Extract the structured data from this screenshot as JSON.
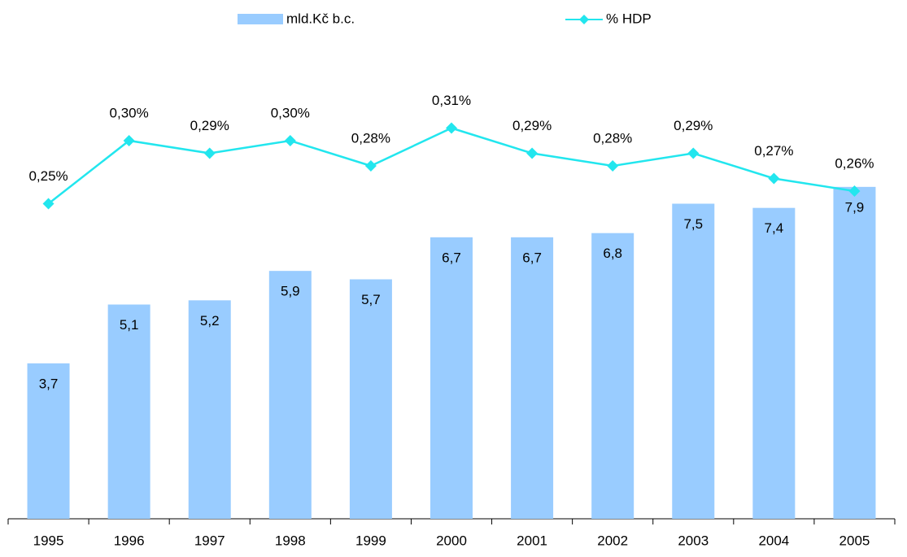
{
  "chart_data": {
    "type": "bar_line",
    "categories": [
      "1995",
      "1996",
      "1997",
      "1998",
      "1999",
      "2000",
      "2001",
      "2002",
      "2003",
      "2004",
      "2005"
    ],
    "series": [
      {
        "name": "mld.Kč b.c.",
        "type": "bar",
        "color": "#99ccff",
        "values": [
          3.7,
          5.1,
          5.2,
          5.9,
          5.7,
          6.7,
          6.7,
          6.8,
          7.5,
          7.4,
          7.9
        ],
        "value_labels": [
          "3,7",
          "5,1",
          "5,2",
          "5,9",
          "5,7",
          "6,7",
          "6,7",
          "6,8",
          "7,5",
          "7,4",
          "7,9"
        ]
      },
      {
        "name": "% HDP",
        "type": "line",
        "axis": "y2",
        "color": "#22e6ee",
        "values": [
          0.25,
          0.3,
          0.29,
          0.3,
          0.28,
          0.31,
          0.29,
          0.28,
          0.29,
          0.27,
          0.26
        ],
        "value_labels": [
          "0,25%",
          "0,30%",
          "0,29%",
          "0,30%",
          "0,28%",
          "0,31%",
          "0,29%",
          "0,28%",
          "0,29%",
          "0,27%",
          "0,26%"
        ]
      }
    ],
    "ylim": [
      0,
      12
    ],
    "y2lim": [
      0,
      0.4
    ],
    "legend": "top"
  }
}
